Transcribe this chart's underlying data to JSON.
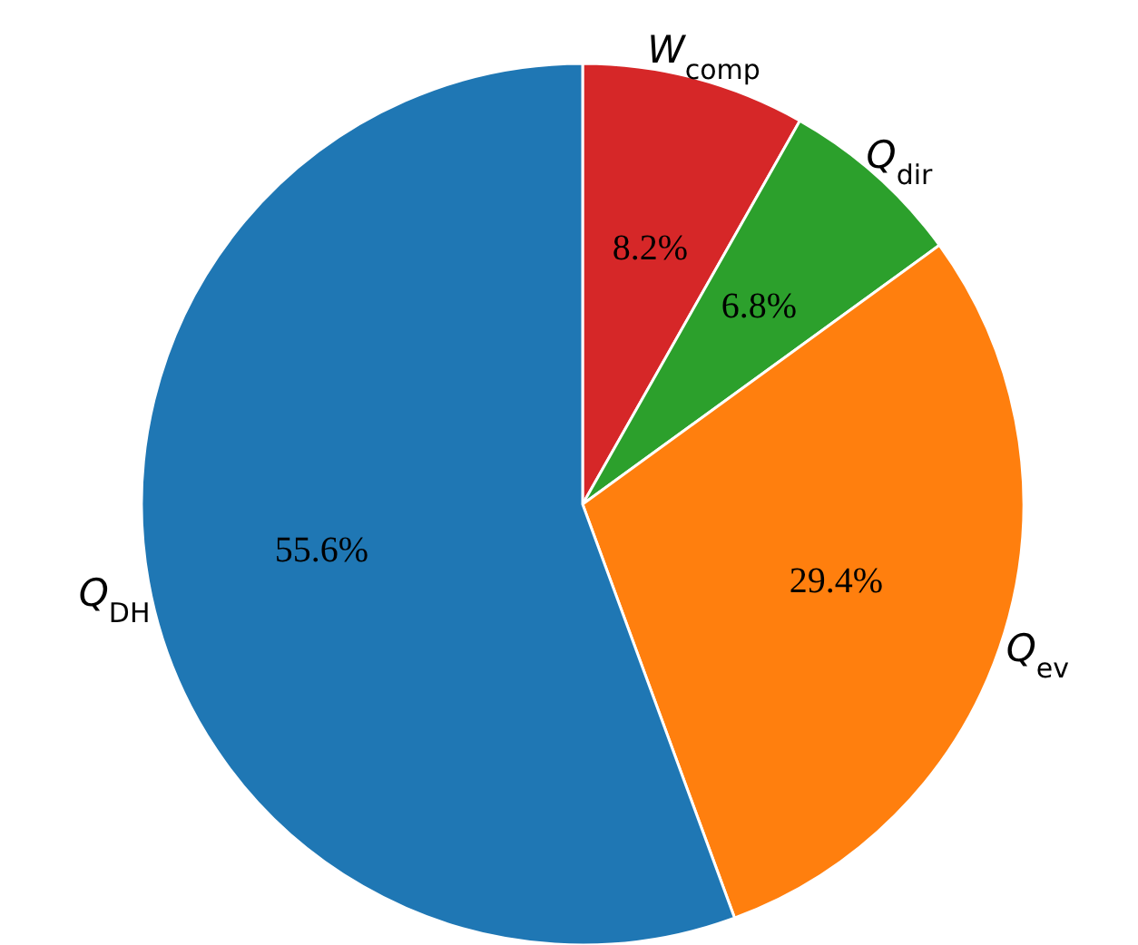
{
  "chart_data": {
    "type": "pie",
    "categories": [
      "W$_{comp}$",
      "Q$_{dir}$",
      "Q$_{ev}$",
      "Q$_{DH}$"
    ],
    "values": [
      8.2,
      6.8,
      29.4,
      55.6
    ],
    "value_labels": [
      "8.2%",
      "6.8%",
      "29.4%",
      "55.6%"
    ],
    "colors": [
      "#d62728",
      "#2ca02c",
      "#ff7f0e",
      "#1f77b4"
    ]
  }
}
